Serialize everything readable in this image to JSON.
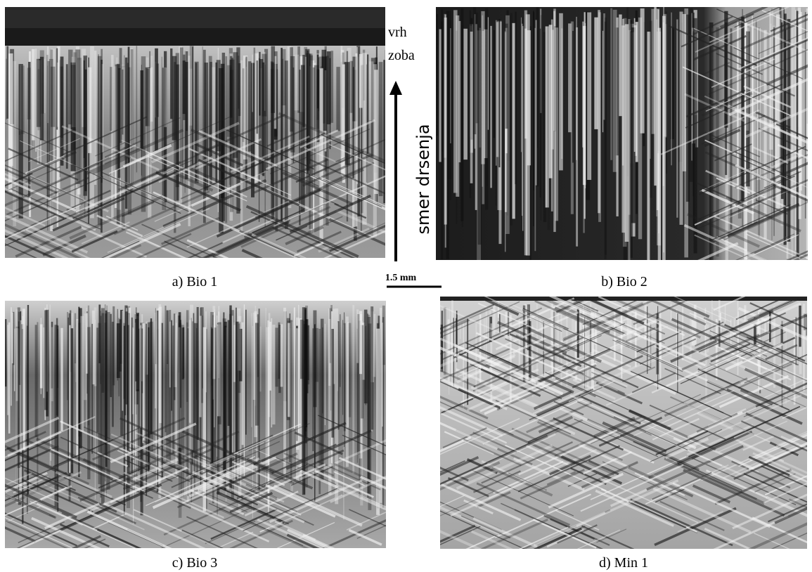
{
  "panels": [
    {
      "caption": "a) Bio 1"
    },
    {
      "caption": "b) Bio 2"
    },
    {
      "caption": "c) Bio 3"
    },
    {
      "caption": "d) Min 1"
    }
  ],
  "labels": {
    "top_line1": "vrh",
    "top_line2": "zoba",
    "direction": "smer drsenja",
    "scale": "1.5 mm"
  }
}
